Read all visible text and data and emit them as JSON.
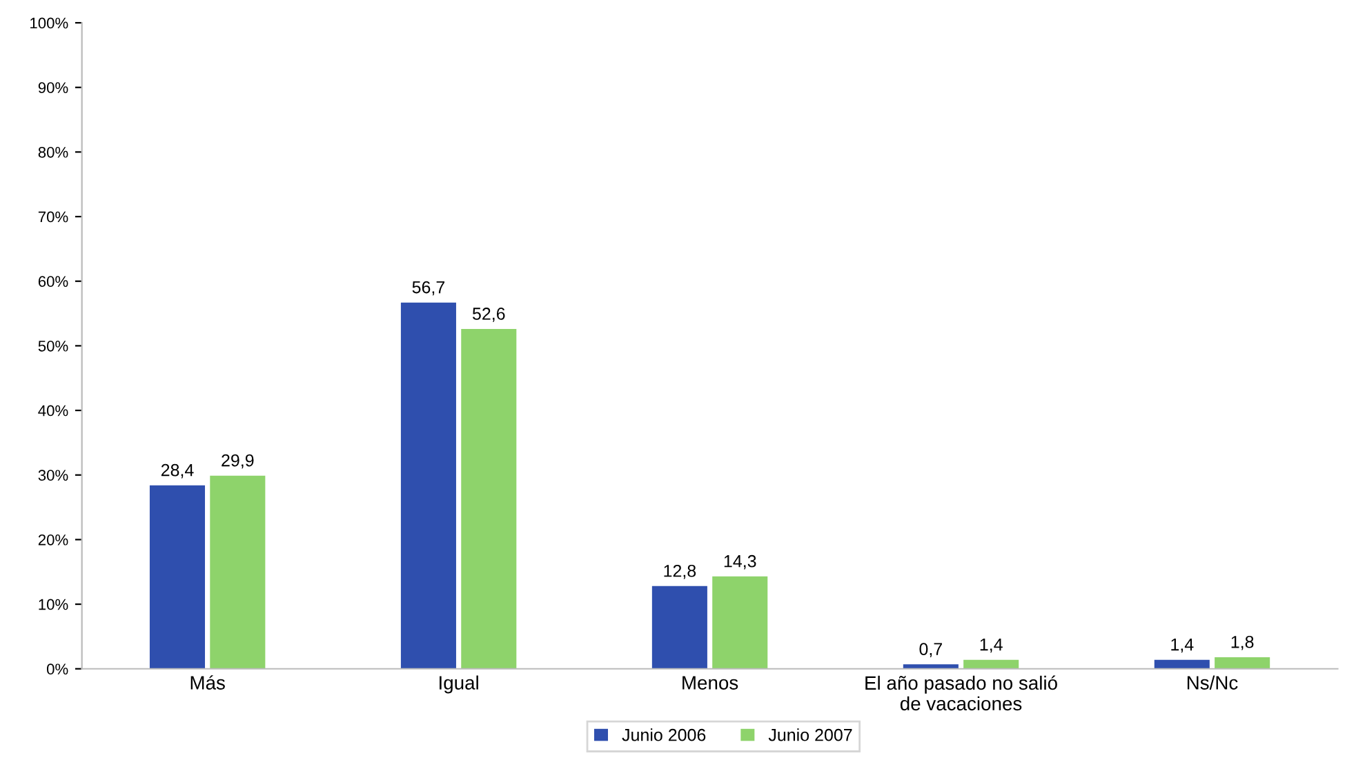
{
  "chart_data": {
    "type": "bar",
    "categories": [
      "Más",
      "Igual",
      "Menos",
      "El año pasado no salió\nde vacaciones",
      "Ns/Nc"
    ],
    "series": [
      {
        "name": "Junio 2006",
        "color": "#2f4fae",
        "values": [
          28.4,
          56.7,
          12.8,
          0.7,
          1.4
        ],
        "value_labels": [
          "28,4",
          "56,7",
          "12,8",
          "0,7",
          "1,4"
        ]
      },
      {
        "name": "Junio 2007",
        "color": "#8ed36b",
        "values": [
          29.9,
          52.6,
          14.3,
          1.4,
          1.8
        ],
        "value_labels": [
          "29,9",
          "52,6",
          "14,3",
          "1,4",
          "1,8"
        ]
      }
    ],
    "ylim": [
      0,
      100
    ],
    "yticks": [
      {
        "value": 0,
        "label": "0%"
      },
      {
        "value": 10,
        "label": "10%"
      },
      {
        "value": 20,
        "label": "20%"
      },
      {
        "value": 30,
        "label": "30%"
      },
      {
        "value": 40,
        "label": "40%"
      },
      {
        "value": 50,
        "label": "50%"
      },
      {
        "value": 60,
        "label": "60%"
      },
      {
        "value": 70,
        "label": "70%"
      },
      {
        "value": 80,
        "label": "80%"
      },
      {
        "value": 90,
        "label": "90%"
      },
      {
        "value": 100,
        "label": "100%"
      }
    ],
    "grid": false,
    "legend": "bottom"
  }
}
